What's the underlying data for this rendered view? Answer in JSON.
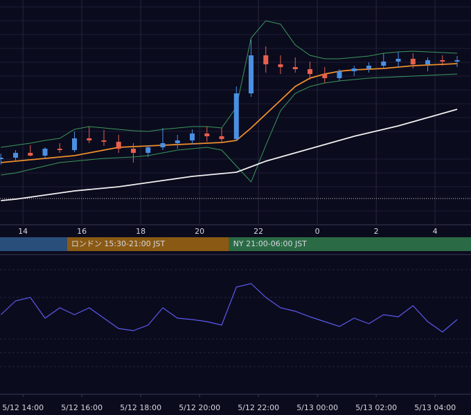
{
  "chart_data": {
    "type": "candlestick",
    "x": [
      13.25,
      13.75,
      14.25,
      14.75,
      15.25,
      15.75,
      16.25,
      16.75,
      17.25,
      17.75,
      18.25,
      18.75,
      19.25,
      19.75,
      20.25,
      20.75,
      21.25,
      21.75,
      22.25,
      22.75,
      23.25,
      23.75,
      24.25,
      24.75,
      25.25,
      25.75,
      26.25,
      26.75,
      27.25,
      27.75,
      28.25,
      28.75
    ],
    "xlim": [
      13.22,
      29.22
    ],
    "ylim": [
      0,
      325
    ],
    "xticks": [
      14,
      16,
      18,
      20,
      22,
      {
        "value": 24,
        "label": "0"
      },
      {
        "value": 26,
        "label": "2"
      },
      {
        "value": 28,
        "label": "4"
      }
    ],
    "candles": {
      "up_color": "#4a90e2",
      "down_color": "#e8604c",
      "open": [
        95,
        97,
        104,
        100,
        110,
        108,
        125,
        122,
        120,
        110,
        104,
        112,
        118,
        122,
        132,
        128,
        124,
        190,
        245,
        232,
        228,
        225,
        218,
        212,
        222,
        226,
        230,
        236,
        240,
        232,
        238,
        236
      ],
      "high": [
        103,
        108,
        115,
        112,
        118,
        135,
        142,
        137,
        130,
        118,
        115,
        140,
        130,
        138,
        142,
        140,
        200,
        268,
        258,
        245,
        242,
        236,
        228,
        225,
        230,
        235,
        248,
        250,
        248,
        242,
        245,
        244
      ],
      "low": [
        87,
        92,
        99,
        96,
        104,
        105,
        118,
        114,
        104,
        90,
        98,
        108,
        110,
        116,
        120,
        118,
        122,
        185,
        220,
        218,
        220,
        210,
        205,
        208,
        215,
        220,
        225,
        228,
        226,
        222,
        230,
        228
      ],
      "close": [
        97,
        104,
        100,
        110,
        108,
        125,
        122,
        120,
        110,
        104,
        112,
        118,
        122,
        132,
        128,
        124,
        190,
        245,
        232,
        228,
        225,
        218,
        212,
        222,
        226,
        230,
        236,
        240,
        232,
        238,
        236,
        238
      ]
    },
    "series": [
      {
        "color": "#3a9a5a",
        "values": [
          112,
          115,
          118,
          122,
          125,
          138,
          142,
          140,
          138,
          136,
          135,
          138,
          140,
          142,
          142,
          140,
          170,
          270,
          295,
          290,
          260,
          245,
          240,
          240,
          242,
          244,
          248,
          250,
          251,
          250,
          249,
          248
        ]
      },
      {
        "color": "#3a9a5a",
        "values": [
          72,
          75,
          80,
          85,
          90,
          92,
          94,
          96,
          97,
          98,
          100,
          104,
          108,
          110,
          112,
          108,
          85,
          62,
          115,
          165,
          190,
          200,
          205,
          208,
          210,
          212,
          213,
          214,
          215,
          216,
          217,
          218
        ]
      },
      {
        "color": "#f0902a",
        "values": [
          90,
          92,
          94,
          96,
          98,
          100,
          104,
          108,
          112,
          113,
          114,
          115,
          116,
          117,
          118,
          119,
          122,
          140,
          160,
          180,
          200,
          212,
          218,
          222,
          224,
          225,
          226,
          228,
          230,
          231,
          232,
          233
        ]
      },
      {
        "color": "#f2f2f2",
        "values": [
          35,
          37,
          40,
          43,
          46,
          49,
          51,
          53,
          55,
          58,
          61,
          64,
          67,
          70,
          72,
          74,
          76,
          84,
          92,
          98,
          104,
          110,
          116,
          122,
          128,
          133,
          138,
          143,
          149,
          155,
          161,
          167
        ]
      }
    ],
    "reference_line": 38,
    "reference_color": "#d0d0d0",
    "sessions": [
      {
        "start": 9,
        "end": 15.5,
        "color": "#2a4e7a"
      },
      {
        "label": "ロンドン 15:30-21:00 JST",
        "start": 15.5,
        "end": 21,
        "color": "#8a5a14"
      },
      {
        "label": "NY 21:00-06:00 JST",
        "start": 21,
        "end": 30,
        "color": "#2a6b45"
      }
    ],
    "oscillator": {
      "type": "line",
      "color": "#5b5bef",
      "values": [
        45,
        65,
        70,
        40,
        55,
        45,
        55,
        40,
        25,
        22,
        30,
        55,
        40,
        38,
        35,
        30,
        85,
        90,
        70,
        55,
        50,
        42,
        35,
        28,
        40,
        32,
        45,
        42,
        58,
        35,
        20,
        38
      ],
      "ylim": [
        -70,
        130
      ],
      "xticks": [
        {
          "value": 14,
          "label": "5/12 14:00"
        },
        {
          "value": 16,
          "label": "5/12 16:00"
        },
        {
          "value": 18,
          "label": "5/12 18:00"
        },
        {
          "value": 20,
          "label": "5/12 20:00"
        },
        {
          "value": 22,
          "label": "5/12 22:00"
        },
        {
          "value": 24,
          "label": "5/13 00:00"
        },
        {
          "value": 26,
          "label": "5/13 02:00"
        },
        {
          "value": 28,
          "label": "5/13 04:00"
        }
      ]
    }
  }
}
